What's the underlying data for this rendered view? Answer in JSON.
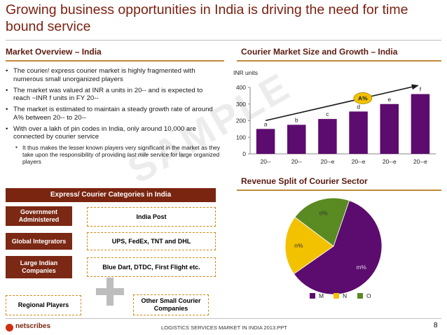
{
  "title": "Growing business opportunities in India is driving the need for time bound service",
  "market_overview": {
    "heading": "Market Overview – India",
    "bullets": [
      "The courier/ express courier market is highly fragmented with numerous small unorganized players",
      "The market was valued at INR a units in 20-- and is expected to reach ~INR f units in FY 20--",
      "The market is estimated to maintain a steady growth rate of around A% between 20-- to 20--",
      "With over a lakh of pin codes in India, only around 10,000 are  connected by courier service"
    ],
    "sub_bullet_start": "It thus makes the lesser known players very significant in the market as they take upon the responsibility of providing ",
    "sub_bullet_em": "last mile",
    "sub_bullet_end": " service for large organized players"
  },
  "watermark": "SAMPLE",
  "categories": {
    "heading": "Express/ Courier Categories in India",
    "rows": [
      {
        "label": "Government Administered",
        "value": "India Post"
      },
      {
        "label": "Global Integrators",
        "value": "UPS, FedEx, TNT and DHL"
      },
      {
        "label": "Large Indian Companies",
        "value": "Blue Dart, DTDC, First Flight etc."
      },
      {
        "label": "Regional Players",
        "value": "Other Small Courier Companies"
      }
    ]
  },
  "chart_data": [
    {
      "type": "bar",
      "title": "Courier Market Size and Growth – India",
      "ylabel": "INR units",
      "categories": [
        "20--",
        "20--",
        "20--e",
        "20--e",
        "20--e",
        "20--e"
      ],
      "values": [
        150,
        175,
        210,
        255,
        300,
        360
      ],
      "data_labels": [
        "a",
        "b",
        "c",
        "d",
        "e",
        "f"
      ],
      "ylim": [
        0,
        400
      ],
      "yticks": [
        0,
        100,
        200,
        300,
        400
      ],
      "growth_label": "A%",
      "colors": {
        "bar": "#5c0c6e",
        "arrow": "#1a1a1a",
        "badge": "#f2c200"
      }
    },
    {
      "type": "pie",
      "title": "Revenue Split of Courier Sector",
      "labels": [
        "M",
        "N",
        "O"
      ],
      "slice_labels": [
        "m%",
        "n%",
        "o%"
      ],
      "values": [
        60,
        20,
        20
      ],
      "colors": [
        "#5c0c6e",
        "#f2c200",
        "#5a8a22"
      ]
    }
  ],
  "footer": {
    "logo": "netscribes",
    "center": "LOGISTICS SERVICES MARKET IN INDIA 2013.PPT",
    "page": "8"
  }
}
